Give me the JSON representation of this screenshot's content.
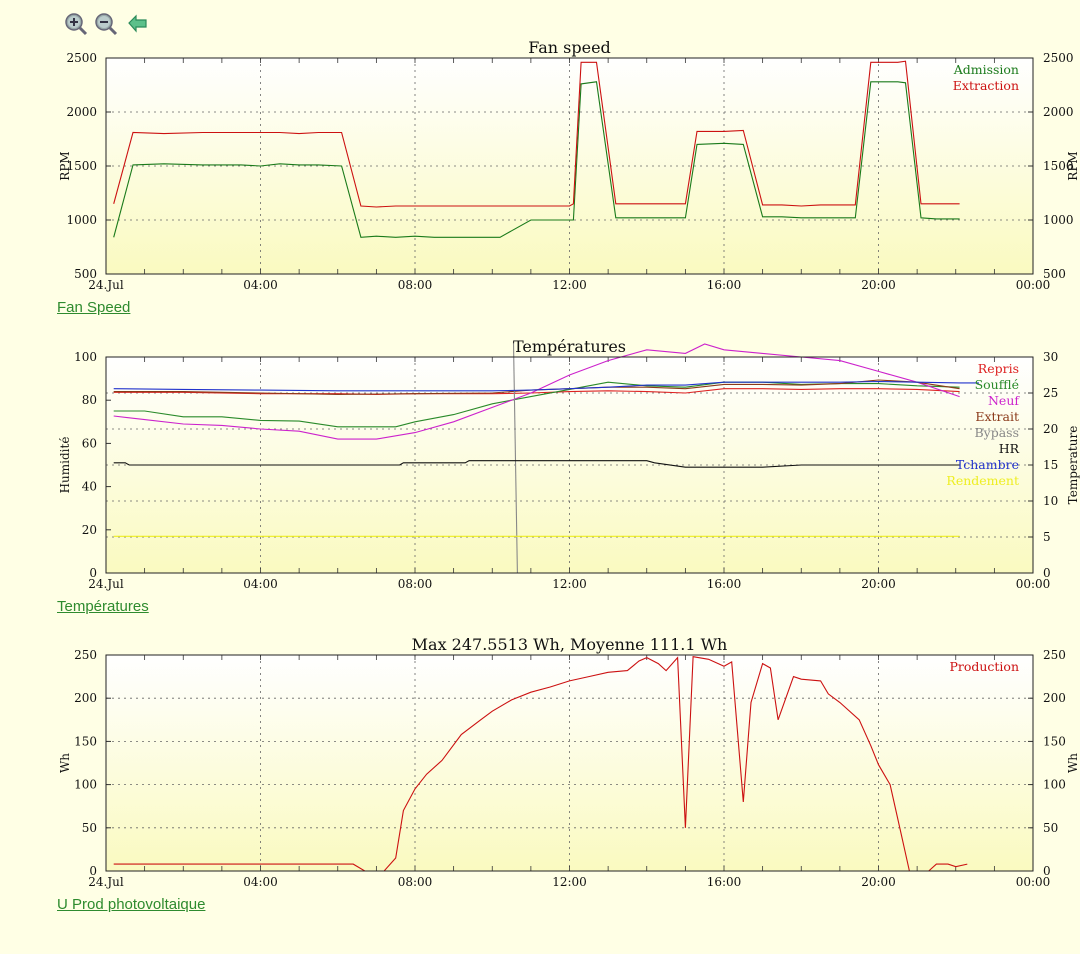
{
  "chart_data": [
    {
      "type": "line",
      "title": "Fan speed",
      "link": "Fan Speed",
      "ylabel_left": "RPM",
      "ylabel_right": "RPM",
      "ylim_left": [
        500,
        2500
      ],
      "ylim_right": [
        500,
        2500
      ],
      "yticks_left": [
        500,
        1000,
        1500,
        2000,
        2500
      ],
      "yticks_right": [
        500,
        1000,
        1500,
        2000,
        2500
      ],
      "xlim_hours": [
        0,
        24
      ],
      "xticks": [
        "24.Jul",
        "04:00",
        "08:00",
        "12:00",
        "16:00",
        "20:00",
        "00:00"
      ],
      "grid": true,
      "legend_position": "top-right",
      "series": [
        {
          "name": "Admission",
          "color": "#1a7a1a",
          "axis": "left",
          "x": [
            0.2,
            0.7,
            1.5,
            2.5,
            3.5,
            4,
            4.5,
            5,
            5.5,
            6.1,
            6.6,
            7,
            7.5,
            8,
            8.5,
            9,
            10,
            10.2,
            10.5,
            11,
            12,
            12.1,
            12.3,
            12.7,
            13.2,
            14,
            14.5,
            15,
            15.3,
            16,
            16.5,
            17,
            17.5,
            18,
            18.5,
            19,
            19.4,
            19.8,
            20,
            20.5,
            20.7,
            21.1,
            21.5,
            22.1
          ],
          "y": [
            840,
            1510,
            1520,
            1510,
            1510,
            1500,
            1520,
            1510,
            1510,
            1500,
            840,
            850,
            840,
            850,
            840,
            840,
            840,
            840,
            900,
            1000,
            1000,
            1000,
            2260,
            2280,
            1020,
            1020,
            1020,
            1020,
            1700,
            1710,
            1700,
            1030,
            1030,
            1020,
            1020,
            1020,
            1020,
            2280,
            2280,
            2280,
            2270,
            1020,
            1010,
            1010
          ]
        },
        {
          "name": "Extraction",
          "color": "#cc1111",
          "axis": "left",
          "x": [
            0.2,
            0.7,
            1.5,
            2.5,
            3.5,
            4,
            4.5,
            5,
            5.5,
            6.1,
            6.6,
            7,
            7.5,
            8,
            8.5,
            9,
            10,
            10.5,
            11,
            12,
            12.1,
            12.3,
            12.7,
            13.2,
            14,
            14.5,
            15,
            15.3,
            16,
            16.5,
            17,
            17.5,
            18,
            18.5,
            19,
            19.4,
            19.8,
            20,
            20.5,
            20.7,
            21.1,
            21.5,
            22.1
          ],
          "y": [
            1150,
            1810,
            1800,
            1810,
            1810,
            1810,
            1810,
            1800,
            1810,
            1810,
            1130,
            1120,
            1130,
            1130,
            1130,
            1130,
            1130,
            1130,
            1130,
            1130,
            1150,
            2460,
            2460,
            1150,
            1150,
            1150,
            1150,
            1820,
            1820,
            1830,
            1140,
            1140,
            1130,
            1140,
            1140,
            1140,
            2460,
            2460,
            2460,
            2470,
            1150,
            1150,
            1150
          ]
        }
      ]
    },
    {
      "type": "line",
      "title": "Températures",
      "link": "Températures",
      "ylabel_left": "Humidité",
      "ylabel_right": "Temperature",
      "ylim_left": [
        0,
        100
      ],
      "ylim_right": [
        0,
        30
      ],
      "yticks_left": [
        0,
        20,
        40,
        60,
        80,
        100
      ],
      "yticks_right": [
        0,
        5,
        10,
        15,
        20,
        25,
        30
      ],
      "xlim_hours": [
        0,
        24
      ],
      "xticks": [
        "24.Jul",
        "04:00",
        "08:00",
        "12:00",
        "16:00",
        "20:00",
        "00:00"
      ],
      "grid": true,
      "legend_position": "top-right",
      "series": [
        {
          "name": "Repris",
          "color": "#dd2222",
          "axis": "right",
          "x": [
            0.2,
            2,
            4,
            6,
            7,
            8,
            10,
            11,
            12,
            13,
            14,
            15,
            16,
            17,
            18,
            19,
            20,
            21,
            22.1
          ],
          "y": [
            25.1,
            25.1,
            24.9,
            24.9,
            24.8,
            24.9,
            24.9,
            25.0,
            25.2,
            25.3,
            25.2,
            25.0,
            25.6,
            25.6,
            25.5,
            25.6,
            25.6,
            25.5,
            25.2
          ]
        },
        {
          "name": "Soufflé",
          "color": "#2a8a2a",
          "axis": "right",
          "x": [
            0.2,
            1,
            2,
            3,
            4,
            5,
            6,
            7,
            7.5,
            8,
            9,
            10,
            11,
            12,
            13,
            14,
            15,
            16,
            17,
            18,
            19,
            20,
            21,
            22.1
          ],
          "y": [
            22.5,
            22.5,
            21.7,
            21.7,
            21.2,
            21.1,
            20.3,
            20.3,
            20.3,
            21.0,
            22.0,
            23.5,
            24.5,
            25.5,
            26.5,
            26.0,
            25.8,
            26.5,
            26.5,
            26.2,
            26.3,
            26.3,
            26.0,
            25.8
          ]
        },
        {
          "name": "Neuf",
          "color": "#cc22cc",
          "axis": "right",
          "x": [
            0.2,
            1,
            2,
            3,
            4,
            5,
            6,
            7,
            8,
            9,
            10,
            11,
            12,
            13,
            14,
            15,
            15.5,
            16,
            17,
            18,
            19,
            20,
            21,
            22.1
          ],
          "y": [
            21.8,
            21.3,
            20.7,
            20.5,
            20.0,
            19.7,
            18.6,
            18.6,
            19.5,
            21.0,
            23.0,
            25.0,
            27.5,
            29.5,
            31.0,
            30.5,
            31.8,
            31.0,
            30.5,
            30.0,
            29.5,
            28.0,
            26.5,
            24.5
          ]
        },
        {
          "name": "Extrait",
          "color": "#8b3a1a",
          "axis": "right",
          "x": [
            0.2,
            2,
            4,
            6,
            8,
            10,
            11,
            12,
            13,
            14,
            15,
            16,
            17,
            18,
            19,
            20,
            21,
            22.1
          ],
          "y": [
            25.2,
            25.2,
            25.0,
            24.8,
            24.9,
            25.0,
            25.4,
            25.6,
            25.8,
            25.8,
            25.6,
            26.2,
            26.2,
            26.1,
            26.3,
            26.8,
            26.5,
            25.6
          ]
        },
        {
          "name": "Bypass",
          "color": "#888888",
          "axis": "right",
          "x": [
            10.55,
            10.65
          ],
          "y": [
            32,
            0
          ]
        },
        {
          "name": "HR",
          "color": "#111111",
          "axis": "left",
          "x": [
            0.2,
            0.5,
            0.6,
            5,
            7.6,
            7.7,
            8,
            9.3,
            9.4,
            11,
            12,
            13,
            14,
            14.2,
            15,
            16,
            17,
            18,
            20,
            22.1
          ],
          "y": [
            51,
            51,
            50,
            50,
            50,
            51,
            51,
            51,
            52,
            52,
            52,
            52,
            52,
            51,
            49,
            49,
            49,
            50,
            50,
            50
          ]
        },
        {
          "name": "Tchambre",
          "color": "#2233cc",
          "axis": "right",
          "x": [
            0.2,
            2,
            4,
            6,
            8,
            10,
            11,
            12,
            13,
            14,
            15,
            16,
            17,
            18,
            19,
            20,
            21,
            22.1,
            22.6
          ],
          "y": [
            25.6,
            25.5,
            25.4,
            25.3,
            25.3,
            25.3,
            25.4,
            25.6,
            25.8,
            26.1,
            26.1,
            26.5,
            26.5,
            26.5,
            26.5,
            26.6,
            26.5,
            26.4,
            26.4
          ]
        },
        {
          "name": "Rendement",
          "color": "#eeee22",
          "axis": "left",
          "x": [
            0.2,
            22.1
          ],
          "y": [
            17,
            17
          ]
        }
      ]
    },
    {
      "type": "line",
      "title": "Max 247.5513 Wh, Moyenne 111.1 Wh",
      "link": "U Prod photovoltaique",
      "ylabel_left": "Wh",
      "ylabel_right": "Wh",
      "ylim_left": [
        0,
        250
      ],
      "ylim_right": [
        0,
        250
      ],
      "yticks_left": [
        0,
        50,
        100,
        150,
        200,
        250
      ],
      "yticks_right": [
        0,
        50,
        100,
        150,
        200,
        250
      ],
      "xlim_hours": [
        0,
        24
      ],
      "xticks": [
        "24.Jul",
        "04:00",
        "08:00",
        "12:00",
        "16:00",
        "20:00",
        "00:00"
      ],
      "grid": true,
      "legend_position": "top-right",
      "series": [
        {
          "name": "Production",
          "color": "#cc1111",
          "axis": "left",
          "x": [
            0.2,
            1,
            2,
            3,
            4,
            5,
            6,
            6.4,
            6.7,
            7,
            7.2,
            7.5,
            7.7,
            8,
            8.3,
            8.7,
            9.2,
            9.7,
            10,
            10.5,
            11,
            11.5,
            12,
            12.5,
            13,
            13.5,
            13.8,
            14,
            14.3,
            14.5,
            14.8,
            15,
            15.2,
            15.6,
            16,
            16.2,
            16.5,
            16.7,
            17,
            17.2,
            17.4,
            17.8,
            18,
            18.5,
            18.7,
            19,
            19.5,
            19.8,
            20,
            20.3,
            20.6,
            20.8,
            21,
            21.3,
            21.5,
            21.8,
            22,
            22.3
          ],
          "y": [
            8,
            8,
            8,
            8,
            8,
            8,
            8,
            8,
            0,
            0,
            0,
            15,
            70,
            95,
            112,
            128,
            158,
            175,
            185,
            198,
            207,
            213,
            220,
            225,
            230,
            232,
            243,
            247,
            240,
            232,
            247,
            50,
            248,
            245,
            237,
            242,
            80,
            195,
            240,
            235,
            175,
            225,
            222,
            220,
            205,
            195,
            175,
            145,
            123,
            100,
            40,
            0,
            0,
            0,
            8,
            8,
            5,
            8
          ]
        }
      ]
    }
  ]
}
